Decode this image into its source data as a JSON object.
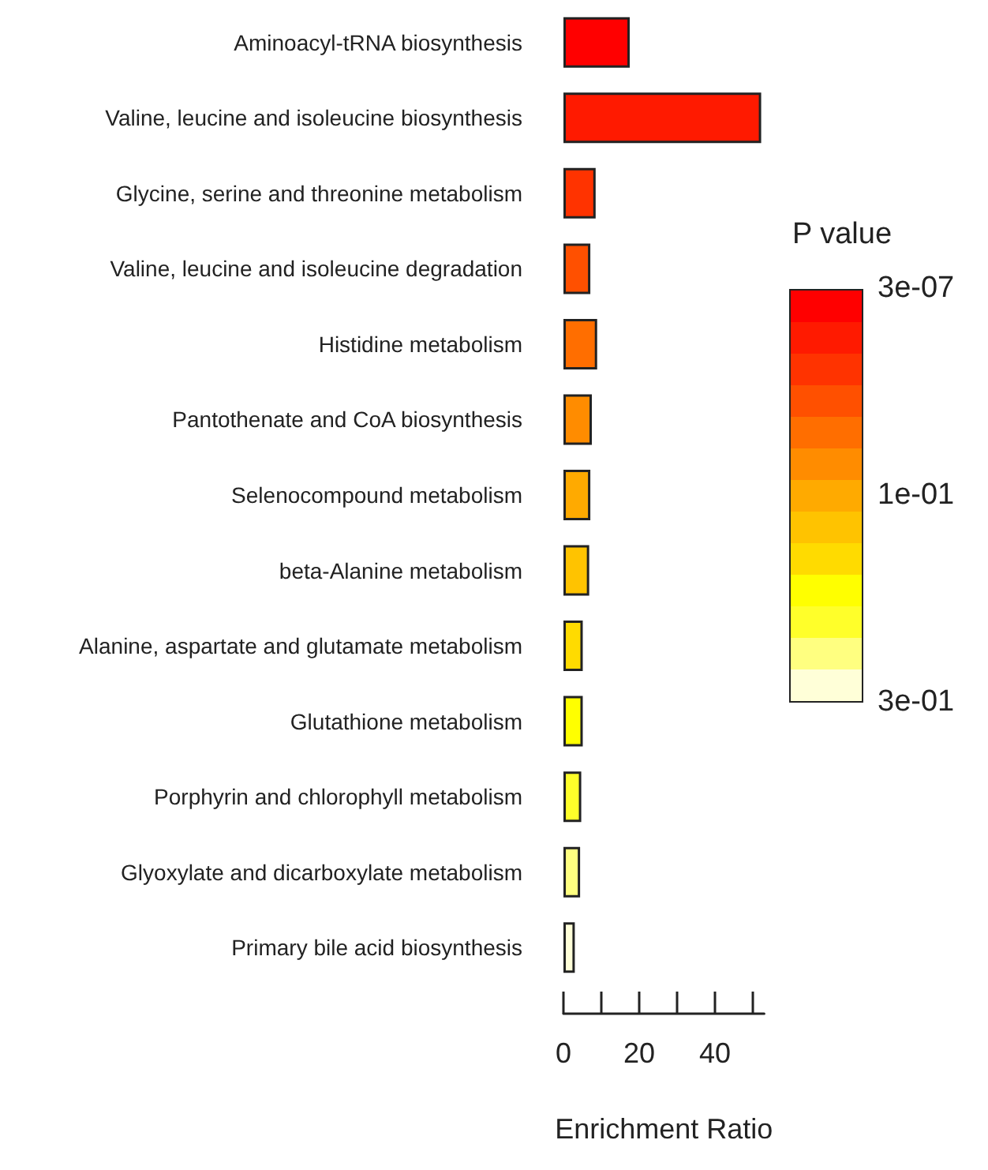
{
  "chart_data": {
    "type": "bar",
    "orientation": "horizontal",
    "categories": [
      "Aminoacyl-tRNA biosynthesis",
      "Valine, leucine and isoleucine biosynthesis",
      "Glycine, serine and threonine metabolism",
      "Valine, leucine and isoleucine degradation",
      "Histidine metabolism",
      "Pantothenate and CoA biosynthesis",
      "Selenocompound metabolism",
      "beta-Alanine metabolism",
      "Alanine, aspartate and glutamate metabolism",
      "Glutathione metabolism",
      "Porphyrin and chlorophyll metabolism",
      "Glyoxylate and dicarboxylate metabolism",
      "Primary bile acid biosynthesis"
    ],
    "values": [
      17.5,
      52.2,
      8.5,
      7.1,
      8.9,
      7.5,
      7.1,
      6.8,
      5.1,
      5.1,
      4.7,
      4.4,
      3.0
    ],
    "colors": [
      "#ff0000",
      "#ff1a00",
      "#ff3300",
      "#ff5000",
      "#ff6e00",
      "#ff8c00",
      "#ffaa00",
      "#ffc300",
      "#ffdb00",
      "#ffff00",
      "#ffff2a",
      "#ffff80",
      "#ffffd8"
    ],
    "xlim": [
      0,
      53
    ],
    "xticks": [
      0,
      {
        "value": 10,
        "label": null
      },
      20,
      {
        "value": 30,
        "label": null
      },
      40,
      {
        "value": 50,
        "label": null
      }
    ],
    "xlabel": "Enrichment Ratio",
    "clabel": "P value",
    "annotations": [
      "3e-07",
      "1e-01",
      "3e-01"
    ],
    "grid": false
  }
}
